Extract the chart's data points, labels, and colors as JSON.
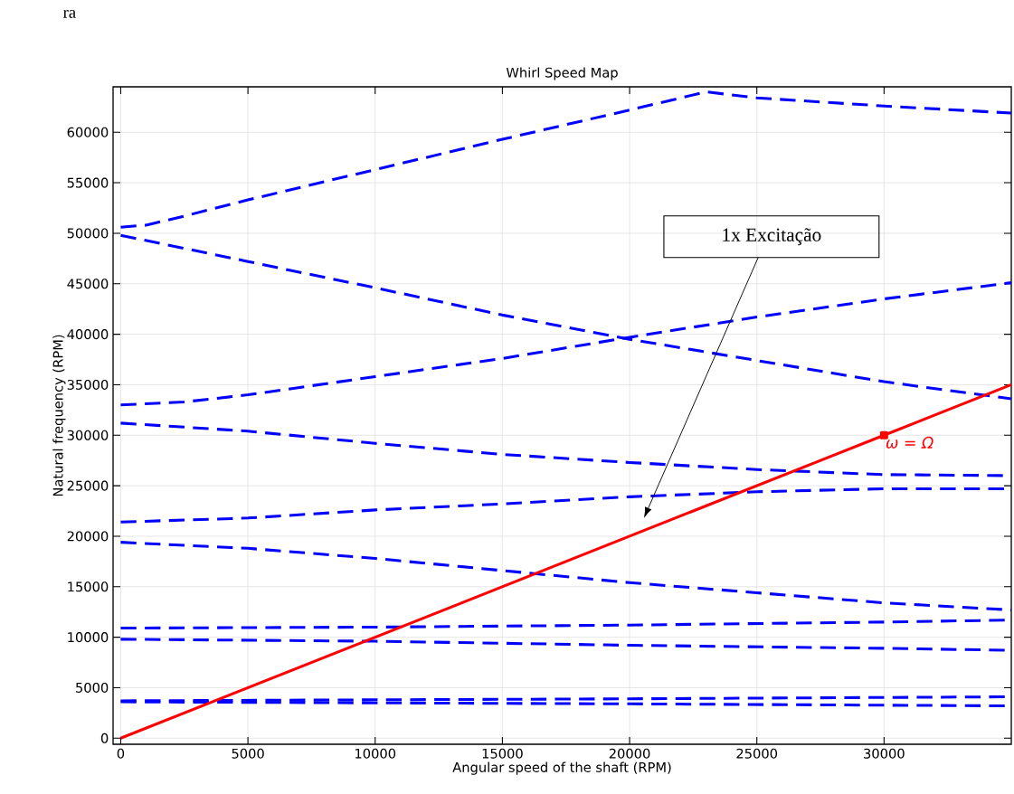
{
  "chart_data": {
    "type": "line",
    "title": "Whirl Speed Map",
    "xlabel": "Angular speed of the shaft (RPM)",
    "ylabel": "Natural frequency (RPM)",
    "xlim": [
      -300,
      35000
    ],
    "ylim": [
      -600,
      64500
    ],
    "xticks": [
      0,
      5000,
      10000,
      15000,
      20000,
      25000,
      30000
    ],
    "yticks": [
      0,
      5000,
      10000,
      15000,
      20000,
      25000,
      30000,
      35000,
      40000,
      45000,
      50000,
      55000,
      60000
    ],
    "grid": true,
    "line_style": "dashed",
    "series": [
      {
        "color": "#0000ff",
        "x": [
          0,
          1000,
          2500,
          5000,
          10000,
          15000,
          20000,
          23000,
          25000,
          30000,
          35000
        ],
        "values": [
          50600,
          50800,
          51700,
          53300,
          56300,
          59300,
          62200,
          64000,
          63400,
          62600,
          61900
        ]
      },
      {
        "color": "#0000ff",
        "x": [
          0,
          5000,
          10000,
          15000,
          20000,
          25000,
          30000,
          35000
        ],
        "values": [
          49800,
          47200,
          44600,
          41900,
          39500,
          37400,
          35300,
          33600
        ]
      },
      {
        "color": "#0000ff",
        "x": [
          0,
          2500,
          5000,
          10000,
          15000,
          20000,
          25000,
          30000,
          35000
        ],
        "values": [
          33000,
          33300,
          34000,
          35800,
          37600,
          39700,
          41700,
          43500,
          45100
        ]
      },
      {
        "color": "#0000ff",
        "x": [
          0,
          5000,
          10000,
          15000,
          20000,
          25000,
          30000,
          35000
        ],
        "values": [
          31200,
          30400,
          29200,
          28100,
          27300,
          26600,
          26100,
          26000
        ]
      },
      {
        "color": "#0000ff",
        "x": [
          0,
          5000,
          10000,
          15000,
          20000,
          25000,
          30000,
          35000
        ],
        "values": [
          21400,
          21800,
          22600,
          23200,
          23900,
          24400,
          24700,
          24700
        ]
      },
      {
        "color": "#0000ff",
        "x": [
          0,
          5000,
          10000,
          15000,
          20000,
          25000,
          30000,
          35000
        ],
        "values": [
          19400,
          18800,
          17800,
          16600,
          15400,
          14400,
          13400,
          12700
        ]
      },
      {
        "color": "#0000ff",
        "x": [
          0,
          10000,
          20000,
          30000,
          35000
        ],
        "values": [
          10900,
          11000,
          11200,
          11500,
          11700
        ]
      },
      {
        "color": "#0000ff",
        "x": [
          0,
          10000,
          20000,
          30000,
          35000
        ],
        "values": [
          9800,
          9600,
          9200,
          8900,
          8700
        ]
      },
      {
        "color": "#0000ff",
        "x": [
          0,
          20000,
          35000
        ],
        "values": [
          3700,
          3900,
          4100
        ]
      },
      {
        "color": "#0000ff",
        "x": [
          0,
          20000,
          35000
        ],
        "values": [
          3600,
          3400,
          3200
        ]
      },
      {
        "name": "ω = Ω",
        "color": "#ff0000",
        "line_style": "solid",
        "x": [
          0,
          30000,
          35000
        ],
        "values": [
          0,
          30000,
          35000
        ]
      }
    ],
    "annotations": [
      "1x Excitação",
      "ra"
    ]
  }
}
